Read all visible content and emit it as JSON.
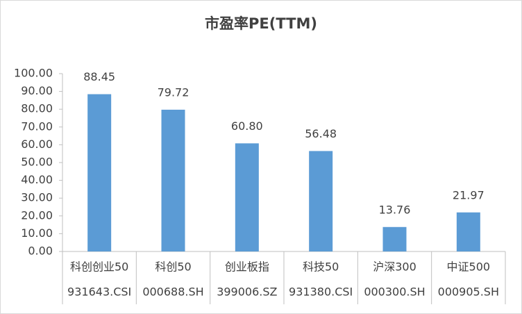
{
  "chart_data": {
    "type": "bar",
    "title": "市盈率PE(TTM)",
    "categories": [
      "科创创业50",
      "科创50",
      "创业板指",
      "科技50",
      "沪深300",
      "中证500"
    ],
    "category_codes": [
      "931643.CSI",
      "000688.SH",
      "399006.SZ",
      "931380.CSI",
      "000300.SH",
      "000905.SH"
    ],
    "values": [
      88.45,
      79.72,
      60.8,
      56.48,
      13.76,
      21.97
    ],
    "value_labels": [
      "88.45",
      "79.72",
      "60.80",
      "56.48",
      "13.76",
      "21.97"
    ],
    "color": "#5b9bd5",
    "ylim": [
      0,
      100
    ],
    "yticks": [
      {
        "value": 0,
        "label": "0.00"
      },
      {
        "value": 10,
        "label": "10.00"
      },
      {
        "value": 20,
        "label": "20.00"
      },
      {
        "value": 30,
        "label": "30.00"
      },
      {
        "value": 40,
        "label": "40.00"
      },
      {
        "value": 50,
        "label": "50.00"
      },
      {
        "value": 60,
        "label": "60.00"
      },
      {
        "value": 70,
        "label": "70.00"
      },
      {
        "value": 80,
        "label": "80.00"
      },
      {
        "value": 90,
        "label": "90.00"
      },
      {
        "value": 100,
        "label": "100.00"
      }
    ],
    "grid": false
  }
}
